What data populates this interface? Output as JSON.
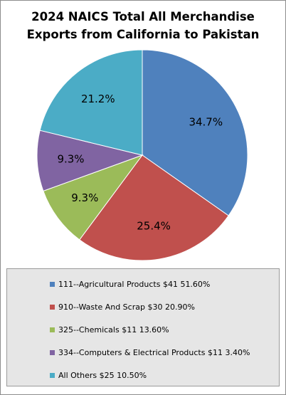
{
  "title_line1": "2024 NAICS Total All Merchandise",
  "title_line2": "Exports from California to Pakistan",
  "chart_data": {
    "type": "pie",
    "title": "2024 NAICS Total All Merchandise Exports from California to Pakistan",
    "slices": [
      {
        "label": "34.7%",
        "value": 34.7,
        "color": "#4f81bd"
      },
      {
        "label": "25.4%",
        "value": 25.4,
        "color": "#c0504d"
      },
      {
        "label": "9.3%",
        "value": 9.3,
        "color": "#9bbb59"
      },
      {
        "label": "9.3%",
        "value": 9.3,
        "color": "#8064a2"
      },
      {
        "label": "21.2%",
        "value": 21.2,
        "color": "#4bacc6"
      }
    ],
    "legend": [
      {
        "text": "111--Agricultural Products $41 51.60%",
        "color": "#4f81bd"
      },
      {
        "text": "910--Waste And Scrap $30 20.90%",
        "color": "#c0504d"
      },
      {
        "text": "325--Chemicals $11 13.60%",
        "color": "#9bbb59"
      },
      {
        "text": "334--Computers & Electrical Products $11 3.40%",
        "color": "#8064a2"
      },
      {
        "text": "All Others $25  10.50%",
        "color": "#4bacc6"
      }
    ],
    "legend_position": "bottom"
  }
}
